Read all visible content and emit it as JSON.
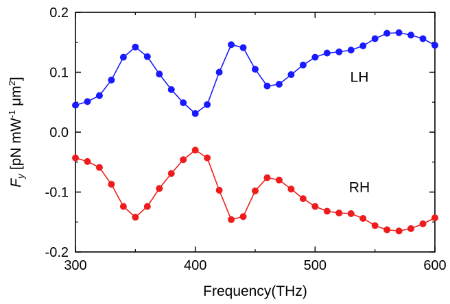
{
  "chart_data": {
    "type": "line",
    "xlabel": "Frequency(THz)",
    "ylabel": {
      "symbol": "F",
      "subscript": "y",
      "units_prefix": " [pN mW",
      "exp1": "-1",
      "units_mid": " μm",
      "exp2": "2",
      "units_suffix": "]"
    },
    "xlim": [
      300,
      600
    ],
    "ylim": [
      -0.2,
      0.2
    ],
    "xticks": [
      {
        "value": 300,
        "label": "300"
      },
      {
        "value": 400,
        "label": "400"
      },
      {
        "value": 500,
        "label": "500"
      },
      {
        "value": 600,
        "label": "600"
      }
    ],
    "yticks": [
      {
        "value": 0.2,
        "label": "0.2"
      },
      {
        "value": 0.1,
        "label": "0.1"
      },
      {
        "value": 0.0,
        "label": "0.0"
      },
      {
        "value": -0.1,
        "label": "-0.1"
      },
      {
        "value": -0.2,
        "label": "-0.2"
      }
    ],
    "x": [
      300,
      310,
      320,
      330,
      340,
      350,
      360,
      370,
      380,
      390,
      400,
      410,
      420,
      430,
      440,
      450,
      460,
      470,
      480,
      490,
      500,
      510,
      520,
      530,
      540,
      550,
      560,
      570,
      580,
      590,
      600
    ],
    "series": [
      {
        "name": "LH",
        "color": "#1a1aff",
        "label_at": [
          537,
          0.092
        ],
        "values": [
          0.045,
          0.051,
          0.061,
          0.087,
          0.125,
          0.142,
          0.126,
          0.097,
          0.071,
          0.049,
          0.031,
          0.046,
          0.1,
          0.146,
          0.141,
          0.105,
          0.077,
          0.08,
          0.096,
          0.112,
          0.125,
          0.132,
          0.134,
          0.137,
          0.144,
          0.156,
          0.165,
          0.166,
          0.162,
          0.156,
          0.145
        ]
      },
      {
        "name": "RH",
        "color": "#ee1c1c",
        "label_at": [
          537,
          -0.092
        ],
        "values": [
          -0.043,
          -0.049,
          -0.059,
          -0.087,
          -0.124,
          -0.142,
          -0.124,
          -0.094,
          -0.069,
          -0.046,
          -0.03,
          -0.043,
          -0.097,
          -0.146,
          -0.141,
          -0.098,
          -0.076,
          -0.08,
          -0.095,
          -0.111,
          -0.124,
          -0.132,
          -0.135,
          -0.136,
          -0.144,
          -0.156,
          -0.163,
          -0.165,
          -0.161,
          -0.153,
          -0.143
        ]
      }
    ]
  }
}
